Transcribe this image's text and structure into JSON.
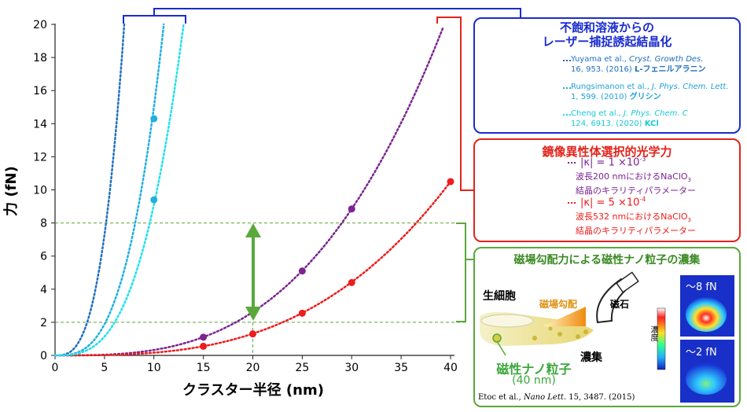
{
  "chart_data": {
    "type": "line",
    "xlabel": "クラスター半径 (nm)",
    "ylabel": "力 (fN)",
    "xlim": [
      0,
      40
    ],
    "ylim": [
      0,
      20
    ],
    "xticks": [
      0,
      5,
      10,
      15,
      20,
      25,
      30,
      35,
      40
    ],
    "yticks": [
      0,
      2,
      4,
      6,
      8,
      10,
      12,
      14,
      16,
      18,
      20
    ],
    "series": [
      {
        "name": "|κ| = 1 ×10⁻³",
        "color": "#7b2590",
        "points": [
          [
            15,
            1.1
          ],
          [
            25,
            5.1
          ],
          [
            30,
            8.85
          ]
        ]
      },
      {
        "name": "|κ| = 5 ×10⁻⁴",
        "color": "#ee1c1c",
        "points": [
          [
            15,
            0.55
          ],
          [
            20,
            1.3
          ],
          [
            25,
            2.55
          ],
          [
            30,
            4.4
          ],
          [
            40,
            10.5
          ]
        ]
      },
      {
        "name": "L-フェニルアラニン",
        "color": "#1f6fc0",
        "points": []
      },
      {
        "name": "グリシン",
        "color": "#1fb0e0",
        "points": [
          [
            10,
            14.3
          ],
          [
            10,
            9.4
          ]
        ]
      },
      {
        "name": "KCl",
        "color": "#22e0e8",
        "points": []
      }
    ],
    "range_lines": [
      2,
      8
    ],
    "marker_x": 20
  },
  "panels": {
    "laser": {
      "title_line1": "不飽和溶液からの",
      "title_line2": "レーザー捕捉誘起結晶化",
      "refs": [
        {
          "authors": "Yuyama et al., ",
          "journal": "Cryst. Growth Des.",
          "detail": "16, 953. (2016) ",
          "compound": "L-フェニルアラニン"
        },
        {
          "authors": "Rungsimanon et al., ",
          "journal": "J. Phys. Chem. Lett.",
          "detail": "1, 599. (2010) ",
          "compound": "グリシン"
        },
        {
          "authors": "Cheng et al., ",
          "journal": "J. Phys. Chem. C",
          "detail": "124, 6913. (2020) ",
          "compound": "KCl"
        }
      ]
    },
    "chiral": {
      "title": "鏡像異性体選択的光学力",
      "kappa1": "|κ| = 1 ×10",
      "kappa1_exp": "-3",
      "desc1_a": "波長200 nmにおけるNaClO",
      "desc1_sub": "3",
      "desc1_b": "結晶のキラリティパラメーター",
      "kappa2": "|κ| = 5 ×10",
      "kappa2_exp": "-4",
      "desc2_a": "波長532 nmにおけるNaClO",
      "desc2_sub": "3",
      "desc2_b": "結晶のキラリティパラメーター"
    },
    "magnetic": {
      "title": "磁場勾配力による磁性ナノ粒子の濃集",
      "cell": "生細胞",
      "gradient": "磁場勾配",
      "magnet": "磁石",
      "concentrated": "濃集",
      "particle": "磁性ナノ粒子",
      "particle_size": "(40 nm)",
      "density": "濃度",
      "force_high": "〜8 fN",
      "force_low": "〜2 fN",
      "ref_authors": "Etoc et al., ",
      "ref_journal": "Nano Lett.",
      "ref_detail": " 15, 3487. (2015)"
    }
  },
  "colors": {
    "blue_frame": "#1a2ccf",
    "red_frame": "#e3231b",
    "green_frame": "#5aa83a",
    "purple": "#7b2590",
    "red": "#ee1c1c",
    "blue": "#1f6fc0",
    "cyan": "#1fb0e0",
    "teal": "#22e0e8"
  }
}
